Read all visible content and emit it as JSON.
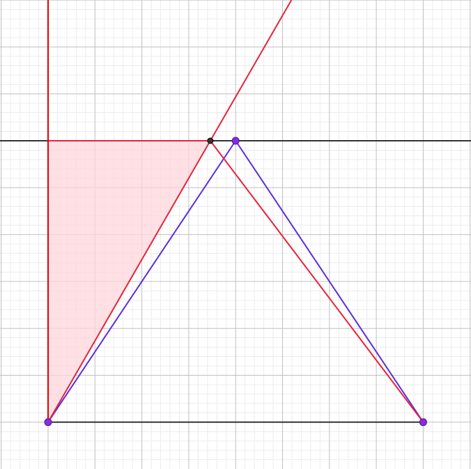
{
  "colors": {
    "background": "#ffffff",
    "minor_grid": "#ececec",
    "major_grid": "#c0c0c0",
    "axis": "#333333",
    "red_stroke": "#e8213a",
    "red_axis": "#e00000",
    "red_fill": "#ffd7dc",
    "blue_stroke": "#5a2de0",
    "point_fill": "#8a2be2",
    "point_stroke": "#4a1a8a",
    "dark_point": "#333333"
  },
  "figure": {
    "points": [
      {
        "id": "A",
        "x": 0,
        "y": -6,
        "style": "purple"
      },
      {
        "id": "B",
        "x": 8,
        "y": -6,
        "style": "purple"
      },
      {
        "id": "C",
        "x": 4,
        "y": 0,
        "style": "purple"
      },
      {
        "id": "D",
        "x": 3.46,
        "y": 0,
        "style": "dark"
      }
    ],
    "segments": [
      {
        "from": "A",
        "to": "B",
        "style": "axis"
      },
      {
        "from": "A",
        "to": "C",
        "style": "blue"
      },
      {
        "from": "C",
        "to": "B",
        "style": "blue"
      },
      {
        "from": "D",
        "to": "B",
        "style": "red"
      }
    ],
    "shaded_region": [
      "A",
      "O",
      "D"
    ],
    "origin": {
      "id": "O",
      "x": 0,
      "y": 0
    },
    "ray": {
      "from": "A",
      "through": "D",
      "style": "red"
    },
    "vertical_axis_style": "red_axis",
    "horizontal_axis_style": "axis"
  }
}
